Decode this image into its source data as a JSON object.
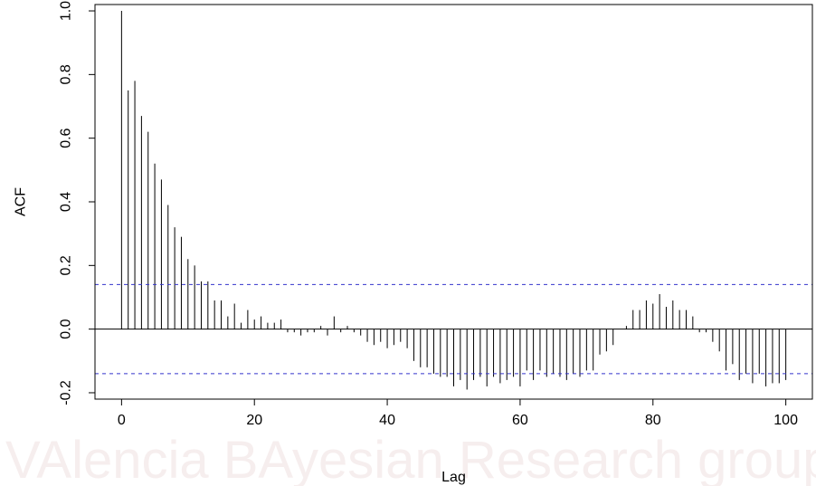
{
  "watermark": {
    "text": "VAlencia BAyesian Research group"
  },
  "chart_data": {
    "type": "bar",
    "xlabel": "Lag",
    "ylabel": "ACF",
    "xlim": [
      -4,
      104
    ],
    "ylim": [
      -0.22,
      1.02
    ],
    "x_ticks": [
      0,
      20,
      40,
      60,
      80,
      100
    ],
    "y_ticks": [
      -0.2,
      0.0,
      0.2,
      0.4,
      0.6,
      0.8,
      1.0
    ],
    "y_tick_labels": [
      "-0.2",
      "0.0",
      "0.2",
      "0.4",
      "0.6",
      "0.8",
      "1.0"
    ],
    "zero_line": true,
    "confidence_bounds": {
      "upper": 0.14,
      "lower": -0.14,
      "color": "#3333cc"
    },
    "bar_color": "#000000",
    "lags": [
      0,
      1,
      2,
      3,
      4,
      5,
      6,
      7,
      8,
      9,
      10,
      11,
      12,
      13,
      14,
      15,
      16,
      17,
      18,
      19,
      20,
      21,
      22,
      23,
      24,
      25,
      26,
      27,
      28,
      29,
      30,
      31,
      32,
      33,
      34,
      35,
      36,
      37,
      38,
      39,
      40,
      41,
      42,
      43,
      44,
      45,
      46,
      47,
      48,
      49,
      50,
      51,
      52,
      53,
      54,
      55,
      56,
      57,
      58,
      59,
      60,
      61,
      62,
      63,
      64,
      65,
      66,
      67,
      68,
      69,
      70,
      71,
      72,
      73,
      74,
      75,
      76,
      77,
      78,
      79,
      80,
      81,
      82,
      83,
      84,
      85,
      86,
      87,
      88,
      89,
      90,
      91,
      92,
      93,
      94,
      95,
      96,
      97,
      98,
      99,
      100
    ],
    "values": [
      1.0,
      0.75,
      0.78,
      0.67,
      0.62,
      0.52,
      0.47,
      0.39,
      0.32,
      0.29,
      0.22,
      0.2,
      0.15,
      0.15,
      0.09,
      0.09,
      0.04,
      0.08,
      0.02,
      0.06,
      0.03,
      0.04,
      0.02,
      0.02,
      0.03,
      -0.01,
      -0.01,
      -0.02,
      -0.01,
      -0.01,
      0.01,
      -0.02,
      0.04,
      -0.01,
      0.01,
      -0.01,
      -0.02,
      -0.04,
      -0.05,
      -0.04,
      -0.06,
      -0.05,
      -0.04,
      -0.06,
      -0.1,
      -0.12,
      -0.12,
      -0.14,
      -0.15,
      -0.15,
      -0.18,
      -0.16,
      -0.19,
      -0.16,
      -0.15,
      -0.18,
      -0.15,
      -0.17,
      -0.16,
      -0.15,
      -0.18,
      -0.13,
      -0.16,
      -0.13,
      -0.15,
      -0.14,
      -0.15,
      -0.16,
      -0.14,
      -0.15,
      -0.13,
      -0.13,
      -0.08,
      -0.07,
      -0.05,
      0.0,
      0.01,
      0.06,
      0.06,
      0.09,
      0.08,
      0.11,
      0.07,
      0.09,
      0.06,
      0.06,
      0.04,
      -0.01,
      -0.01,
      -0.04,
      -0.07,
      -0.13,
      -0.11,
      -0.16,
      -0.14,
      -0.17,
      -0.14,
      -0.18,
      -0.17,
      -0.17,
      -0.16
    ]
  }
}
